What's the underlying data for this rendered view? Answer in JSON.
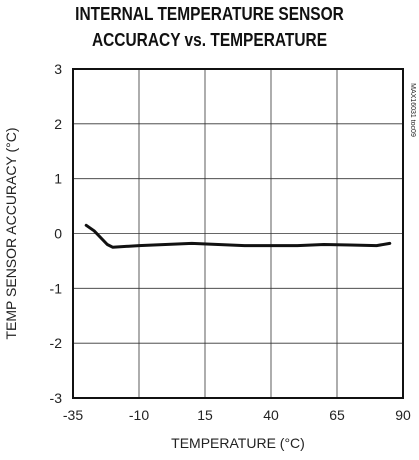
{
  "chart_data": {
    "type": "line",
    "title_lines": [
      "INTERNAL TEMPERATURE SENSOR",
      "ACCURACY vs. TEMPERATURE"
    ],
    "xlabel": "TEMPERATURE (°C)",
    "ylabel": "TEMP SENSOR ACCURACY (°C)",
    "watermark": "MAX16031 toc09",
    "xlim": [
      -35,
      90
    ],
    "ylim": [
      -3,
      3
    ],
    "x_ticks": [
      -35,
      -10,
      15,
      40,
      65,
      90
    ],
    "x_tick_labels": [
      "-35",
      "-10",
      "15",
      "40",
      "65",
      "90"
    ],
    "y_ticks": [
      3,
      2,
      1,
      0,
      -1,
      -2,
      -3
    ],
    "y_tick_labels": [
      "3",
      "2",
      "1",
      "0",
      "-1",
      "-2",
      "-3"
    ],
    "grid": true,
    "series": [
      {
        "x": [
          -30,
          -27,
          -24,
          -22,
          -20,
          -10,
          0,
          10,
          20,
          30,
          40,
          50,
          60,
          70,
          80,
          85
        ],
        "y": [
          0.15,
          0.05,
          -0.1,
          -0.2,
          -0.25,
          -0.22,
          -0.2,
          -0.18,
          -0.2,
          -0.22,
          -0.22,
          -0.22,
          -0.2,
          -0.21,
          -0.22,
          -0.18
        ]
      }
    ]
  }
}
